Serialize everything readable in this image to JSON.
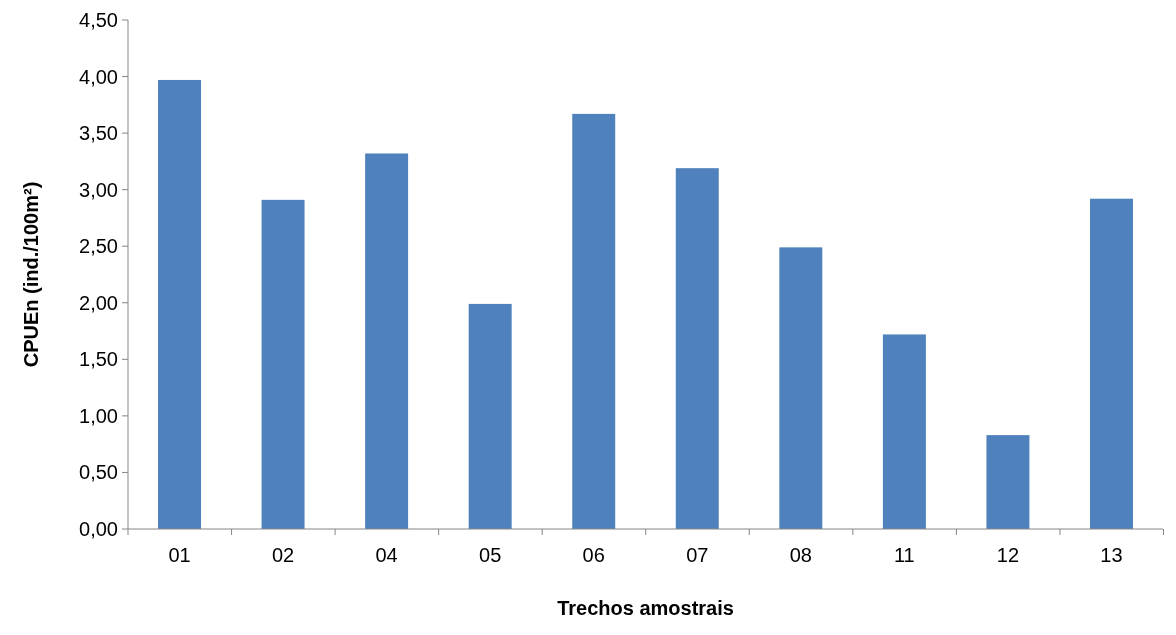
{
  "chart_data": {
    "type": "bar",
    "xlabel": "Trechos amostrais",
    "ylabel": "CPUEn (ind./100m²)",
    "categories": [
      "01",
      "02",
      "04",
      "05",
      "06",
      "07",
      "08",
      "11",
      "12",
      "13"
    ],
    "values": [
      3.97,
      2.91,
      3.32,
      1.99,
      3.67,
      3.19,
      2.49,
      1.72,
      0.83,
      2.92
    ],
    "color": "#4f81bd",
    "ylim": [
      0,
      4.5
    ],
    "yticks": [
      {
        "value": 0,
        "label": "0,00"
      },
      {
        "value": 0.5,
        "label": "0,50"
      },
      {
        "value": 1,
        "label": "1,00"
      },
      {
        "value": 1.5,
        "label": "1,50"
      },
      {
        "value": 2,
        "label": "2,00"
      },
      {
        "value": 2.5,
        "label": "2,50"
      },
      {
        "value": 3,
        "label": "3,00"
      },
      {
        "value": 3.5,
        "label": "3,50"
      },
      {
        "value": 4,
        "label": "4,00"
      },
      {
        "value": 4.5,
        "label": "4,50"
      }
    ],
    "grid": false
  }
}
